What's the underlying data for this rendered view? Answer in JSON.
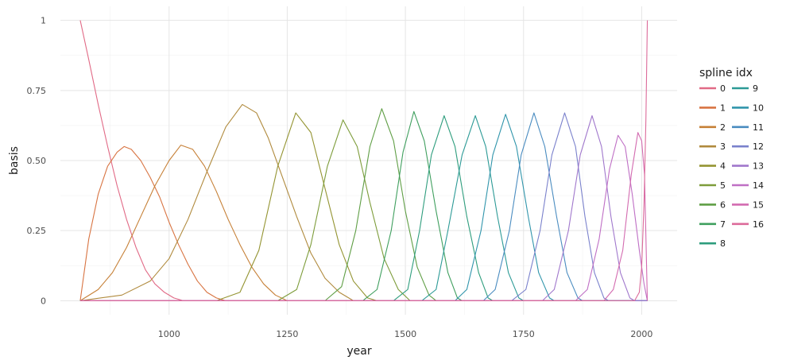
{
  "chart_data": {
    "type": "line",
    "title": "",
    "xlabel": "year",
    "ylabel": "basis",
    "xlim": [
      770,
      2075
    ],
    "ylim": [
      -0.05,
      1.05
    ],
    "x_ticks": [
      1000,
      1250,
      1500,
      1750,
      2000
    ],
    "x_tick_labels": [
      "1000",
      "1250",
      "1500",
      "1750",
      "2000"
    ],
    "y_ticks": [
      0,
      0.25,
      0.5,
      0.75,
      1
    ],
    "y_tick_labels": [
      "0",
      "0.25",
      "0.50",
      "0.75",
      "1"
    ],
    "grid": true,
    "legend": {
      "title": "spline idx",
      "position": "right",
      "ncol": 2
    },
    "series": [
      {
        "name": "0",
        "color": "#E16A86",
        "points": [
          [
            812,
            1.0
          ],
          [
            830,
            0.86
          ],
          [
            850,
            0.7
          ],
          [
            870,
            0.55
          ],
          [
            890,
            0.41
          ],
          [
            910,
            0.29
          ],
          [
            930,
            0.19
          ],
          [
            950,
            0.11
          ],
          [
            970,
            0.06
          ],
          [
            990,
            0.03
          ],
          [
            1010,
            0.01
          ],
          [
            1030,
            0.0
          ],
          [
            2012,
            0.0
          ]
        ]
      },
      {
        "name": "1",
        "color": "#D87442",
        "points": [
          [
            812,
            0.0
          ],
          [
            830,
            0.22
          ],
          [
            850,
            0.38
          ],
          [
            870,
            0.48
          ],
          [
            890,
            0.53
          ],
          [
            905,
            0.55
          ],
          [
            920,
            0.54
          ],
          [
            940,
            0.5
          ],
          [
            960,
            0.44
          ],
          [
            980,
            0.37
          ],
          [
            1000,
            0.28
          ],
          [
            1020,
            0.2
          ],
          [
            1040,
            0.13
          ],
          [
            1060,
            0.07
          ],
          [
            1080,
            0.03
          ],
          [
            1100,
            0.01
          ],
          [
            1120,
            0.0
          ],
          [
            2012,
            0.0
          ]
        ]
      },
      {
        "name": "2",
        "color": "#C68037",
        "points": [
          [
            812,
            0.0
          ],
          [
            850,
            0.04
          ],
          [
            880,
            0.1
          ],
          [
            910,
            0.19
          ],
          [
            940,
            0.3
          ],
          [
            970,
            0.41
          ],
          [
            1000,
            0.5
          ],
          [
            1025,
            0.555
          ],
          [
            1050,
            0.54
          ],
          [
            1075,
            0.48
          ],
          [
            1100,
            0.39
          ],
          [
            1125,
            0.29
          ],
          [
            1150,
            0.2
          ],
          [
            1175,
            0.12
          ],
          [
            1200,
            0.06
          ],
          [
            1225,
            0.02
          ],
          [
            1250,
            0.0
          ],
          [
            2012,
            0.0
          ]
        ]
      },
      {
        "name": "3",
        "color": "#B08A3D",
        "points": [
          [
            812,
            0.0
          ],
          [
            900,
            0.02
          ],
          [
            960,
            0.07
          ],
          [
            1000,
            0.15
          ],
          [
            1040,
            0.29
          ],
          [
            1080,
            0.46
          ],
          [
            1120,
            0.62
          ],
          [
            1155,
            0.7
          ],
          [
            1185,
            0.67
          ],
          [
            1210,
            0.58
          ],
          [
            1240,
            0.44
          ],
          [
            1270,
            0.3
          ],
          [
            1300,
            0.17
          ],
          [
            1330,
            0.08
          ],
          [
            1360,
            0.03
          ],
          [
            1390,
            0.0
          ],
          [
            2012,
            0.0
          ]
        ]
      },
      {
        "name": "4",
        "color": "#949432",
        "points": [
          [
            812,
            0.0
          ],
          [
            1100,
            0.0
          ],
          [
            1150,
            0.03
          ],
          [
            1190,
            0.18
          ],
          [
            1230,
            0.48
          ],
          [
            1268,
            0.67
          ],
          [
            1300,
            0.6
          ],
          [
            1330,
            0.4
          ],
          [
            1360,
            0.2
          ],
          [
            1390,
            0.07
          ],
          [
            1420,
            0.01
          ],
          [
            1440,
            0.0
          ],
          [
            2012,
            0.0
          ]
        ]
      },
      {
        "name": "5",
        "color": "#7D9C3A",
        "points": [
          [
            812,
            0.0
          ],
          [
            1230,
            0.0
          ],
          [
            1270,
            0.04
          ],
          [
            1300,
            0.2
          ],
          [
            1335,
            0.48
          ],
          [
            1368,
            0.645
          ],
          [
            1398,
            0.55
          ],
          [
            1425,
            0.35
          ],
          [
            1455,
            0.15
          ],
          [
            1485,
            0.04
          ],
          [
            1510,
            0.0
          ],
          [
            2012,
            0.0
          ]
        ]
      },
      {
        "name": "6",
        "color": "#5F9E45",
        "points": [
          [
            812,
            0.0
          ],
          [
            1330,
            0.0
          ],
          [
            1365,
            0.05
          ],
          [
            1395,
            0.25
          ],
          [
            1425,
            0.55
          ],
          [
            1450,
            0.685
          ],
          [
            1475,
            0.57
          ],
          [
            1500,
            0.32
          ],
          [
            1525,
            0.12
          ],
          [
            1550,
            0.02
          ],
          [
            1565,
            0.0
          ],
          [
            2012,
            0.0
          ]
        ]
      },
      {
        "name": "7",
        "color": "#3F9F5E",
        "points": [
          [
            812,
            0.0
          ],
          [
            1410,
            0.0
          ],
          [
            1440,
            0.04
          ],
          [
            1470,
            0.25
          ],
          [
            1495,
            0.53
          ],
          [
            1518,
            0.675
          ],
          [
            1540,
            0.57
          ],
          [
            1565,
            0.32
          ],
          [
            1590,
            0.1
          ],
          [
            1610,
            0.01
          ],
          [
            1620,
            0.0
          ],
          [
            2012,
            0.0
          ]
        ]
      },
      {
        "name": "8",
        "color": "#2E9D7D",
        "points": [
          [
            812,
            0.0
          ],
          [
            1475,
            0.0
          ],
          [
            1505,
            0.04
          ],
          [
            1530,
            0.25
          ],
          [
            1555,
            0.52
          ],
          [
            1582,
            0.66
          ],
          [
            1605,
            0.55
          ],
          [
            1630,
            0.3
          ],
          [
            1655,
            0.1
          ],
          [
            1675,
            0.01
          ],
          [
            1685,
            0.0
          ],
          [
            2012,
            0.0
          ]
        ]
      },
      {
        "name": "9",
        "color": "#2C9A96",
        "points": [
          [
            812,
            0.0
          ],
          [
            1535,
            0.0
          ],
          [
            1565,
            0.04
          ],
          [
            1590,
            0.25
          ],
          [
            1620,
            0.52
          ],
          [
            1648,
            0.66
          ],
          [
            1670,
            0.55
          ],
          [
            1695,
            0.3
          ],
          [
            1718,
            0.1
          ],
          [
            1740,
            0.01
          ],
          [
            1750,
            0.0
          ],
          [
            2012,
            0.0
          ]
        ]
      },
      {
        "name": "10",
        "color": "#3095AB",
        "points": [
          [
            812,
            0.0
          ],
          [
            1605,
            0.0
          ],
          [
            1630,
            0.04
          ],
          [
            1660,
            0.25
          ],
          [
            1685,
            0.52
          ],
          [
            1712,
            0.665
          ],
          [
            1735,
            0.55
          ],
          [
            1760,
            0.3
          ],
          [
            1782,
            0.1
          ],
          [
            1805,
            0.01
          ],
          [
            1815,
            0.0
          ],
          [
            2012,
            0.0
          ]
        ]
      },
      {
        "name": "11",
        "color": "#4A8CC0",
        "points": [
          [
            812,
            0.0
          ],
          [
            1665,
            0.0
          ],
          [
            1690,
            0.04
          ],
          [
            1720,
            0.25
          ],
          [
            1745,
            0.52
          ],
          [
            1772,
            0.67
          ],
          [
            1795,
            0.55
          ],
          [
            1820,
            0.3
          ],
          [
            1842,
            0.1
          ],
          [
            1865,
            0.01
          ],
          [
            1875,
            0.0
          ],
          [
            2012,
            0.0
          ]
        ]
      },
      {
        "name": "12",
        "color": "#7A81CC",
        "points": [
          [
            812,
            0.0
          ],
          [
            1725,
            0.0
          ],
          [
            1755,
            0.04
          ],
          [
            1785,
            0.25
          ],
          [
            1810,
            0.52
          ],
          [
            1837,
            0.67
          ],
          [
            1860,
            0.55
          ],
          [
            1880,
            0.3
          ],
          [
            1900,
            0.1
          ],
          [
            1920,
            0.01
          ],
          [
            1930,
            0.0
          ],
          [
            2012,
            0.0
          ]
        ]
      },
      {
        "name": "13",
        "color": "#A077CC",
        "points": [
          [
            812,
            0.0
          ],
          [
            1790,
            0.0
          ],
          [
            1815,
            0.04
          ],
          [
            1845,
            0.25
          ],
          [
            1870,
            0.52
          ],
          [
            1895,
            0.66
          ],
          [
            1915,
            0.55
          ],
          [
            1935,
            0.3
          ],
          [
            1955,
            0.1
          ],
          [
            1975,
            0.01
          ],
          [
            1985,
            0.0
          ],
          [
            2012,
            0.0
          ]
        ]
      },
      {
        "name": "14",
        "color": "#BF6FC5",
        "points": [
          [
            812,
            0.0
          ],
          [
            1860,
            0.0
          ],
          [
            1885,
            0.04
          ],
          [
            1910,
            0.22
          ],
          [
            1932,
            0.47
          ],
          [
            1950,
            0.59
          ],
          [
            1965,
            0.55
          ],
          [
            1980,
            0.38
          ],
          [
            1995,
            0.18
          ],
          [
            2005,
            0.06
          ],
          [
            2012,
            0.0
          ]
        ]
      },
      {
        "name": "15",
        "color": "#D36BB0",
        "points": [
          [
            812,
            0.0
          ],
          [
            1920,
            0.0
          ],
          [
            1940,
            0.04
          ],
          [
            1960,
            0.18
          ],
          [
            1978,
            0.45
          ],
          [
            1992,
            0.6
          ],
          [
            2000,
            0.57
          ],
          [
            2006,
            0.45
          ],
          [
            2012,
            0.0
          ]
        ]
      },
      {
        "name": "16",
        "color": "#DC6B9A",
        "points": [
          [
            812,
            0.0
          ],
          [
            1985,
            0.0
          ],
          [
            1995,
            0.03
          ],
          [
            2000,
            0.12
          ],
          [
            2005,
            0.35
          ],
          [
            2009,
            0.65
          ],
          [
            2012,
            1.0
          ]
        ]
      }
    ]
  }
}
